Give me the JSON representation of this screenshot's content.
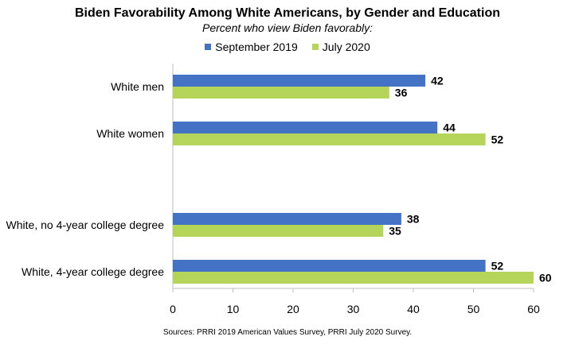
{
  "chart_data": {
    "type": "bar",
    "orientation": "horizontal",
    "title": "Biden Favorability Among White Americans, by Gender and Education",
    "subtitle": "Percent who view Biden favorably:",
    "categories": [
      "White men",
      "White women",
      "White, no 4-year college degree",
      "White, 4-year college degree"
    ],
    "series": [
      {
        "name": "September 2019",
        "color": "#4472C4",
        "values": [
          42,
          44,
          38,
          52
        ]
      },
      {
        "name": "July 2020",
        "color": "#B5D55A",
        "values": [
          36,
          52,
          35,
          60
        ]
      }
    ],
    "xlim": [
      0,
      60
    ],
    "xticks": [
      0,
      10,
      20,
      30,
      40,
      50,
      60
    ],
    "xlabel": "",
    "ylabel": "",
    "grid": false,
    "legend_position": "top"
  },
  "source": "Sources: PRRI 2019 American Values Survey, PRRI July 2020 Survey."
}
